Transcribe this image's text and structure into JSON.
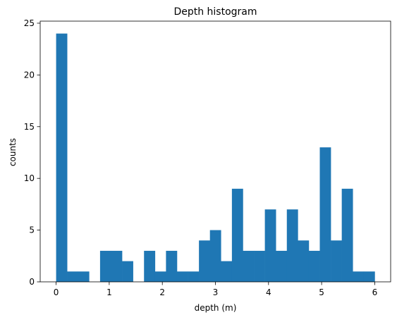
{
  "chart_data": {
    "type": "bar",
    "title": "Depth histogram",
    "xlabel": "depth (m)",
    "ylabel": "counts",
    "xlim": [
      -0.3,
      6.3
    ],
    "ylim": [
      0,
      25.2
    ],
    "xticks": [
      0,
      1,
      2,
      3,
      4,
      5,
      6
    ],
    "yticks": [
      0,
      5,
      10,
      15,
      20,
      25
    ],
    "grid": false,
    "bar_color": "#1f77b4",
    "bin_edges": [
      0.0,
      0.2069,
      0.4138,
      0.6207,
      0.8276,
      1.0345,
      1.2414,
      1.4483,
      1.6552,
      1.8621,
      2.069,
      2.2759,
      2.4828,
      2.6897,
      2.8966,
      3.1034,
      3.3103,
      3.5172,
      3.7241,
      3.931,
      4.1379,
      4.3448,
      4.5517,
      4.7586,
      4.9655,
      5.1724,
      5.3793,
      5.5862,
      5.7931,
      6.0
    ],
    "counts": [
      24,
      1,
      1,
      0,
      3,
      3,
      2,
      0,
      3,
      1,
      3,
      1,
      1,
      4,
      5,
      2,
      9,
      3,
      3,
      7,
      3,
      7,
      4,
      3,
      13,
      4,
      9,
      1,
      1
    ]
  }
}
